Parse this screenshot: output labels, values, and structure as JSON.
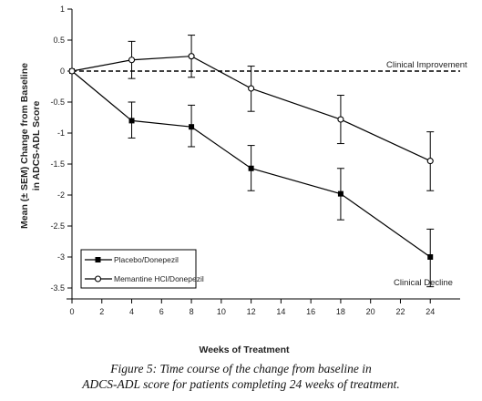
{
  "chart_data": {
    "type": "line",
    "ylabel_lines": [
      "Mean (± SEM) Change from Baseline",
      "in ADCS-ADL Score"
    ],
    "xlabel": "Weeks of Treatment",
    "x_ticks": [
      0,
      2,
      4,
      6,
      8,
      10,
      12,
      14,
      16,
      18,
      20,
      22,
      24
    ],
    "y_ticks": [
      1,
      0.5,
      0,
      -0.5,
      -1,
      -1.5,
      -2,
      -2.5,
      -3,
      -3.5
    ],
    "y_tick_labels": [
      "1",
      "0.5",
      "0",
      "-0.5",
      "-1",
      "-1.5",
      "-2",
      "-2.5",
      "-3",
      "-3.5"
    ],
    "xlim": [
      0,
      26
    ],
    "ylim": [
      -3.5,
      1
    ],
    "reference_line": {
      "y": 0,
      "style": "dashed"
    },
    "annotations": [
      {
        "text": "Clinical Improvement",
        "x": 24,
        "y": 0
      },
      {
        "text": "Clinical Decline",
        "x": 24,
        "y": -3.5
      }
    ],
    "series": [
      {
        "name": "Placebo/Donepezil",
        "marker": "filled-square",
        "x": [
          0,
          4,
          8,
          12,
          18,
          24
        ],
        "y": [
          0,
          -0.8,
          -0.9,
          -1.57,
          -1.98,
          -3.0
        ],
        "err_low": [
          0,
          -1.08,
          -1.22,
          -1.93,
          -2.4,
          -3.48
        ],
        "err_high": [
          0,
          -0.5,
          -0.55,
          -1.2,
          -1.57,
          -2.55
        ]
      },
      {
        "name": "Memantine HCl/Donepezil",
        "marker": "open-circle",
        "x": [
          0,
          4,
          8,
          12,
          18,
          24
        ],
        "y": [
          0,
          0.18,
          0.24,
          -0.28,
          -0.78,
          -1.45
        ],
        "err_low": [
          0,
          -0.12,
          -0.1,
          -0.65,
          -1.17,
          -1.93
        ],
        "err_high": [
          0,
          0.48,
          0.58,
          0.08,
          -0.39,
          -0.98
        ]
      }
    ],
    "legend_position": "bottom-left"
  },
  "caption": {
    "line1": "Figure 5: Time course of the change from baseline in",
    "line2": "ADCS-ADL score for patients completing 24 weeks of treatment."
  }
}
